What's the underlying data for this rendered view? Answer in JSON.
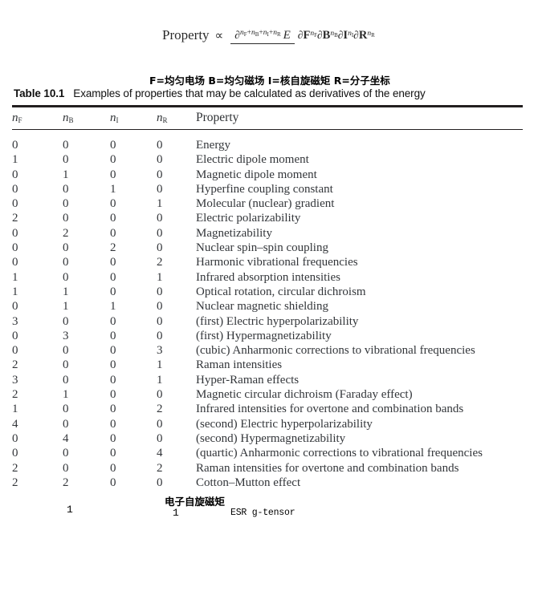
{
  "colors": {
    "background": "#ffffff",
    "table_text": "#33363a",
    "rule": "#231f20",
    "annotation_text": "#000000"
  },
  "formula": {
    "lhs": "Property",
    "propto": "∝",
    "partial": "∂",
    "energy": "E",
    "plus": "+",
    "sup_terms": [
      {
        "base": "n",
        "sub": "F"
      },
      {
        "base": "n",
        "sub": "B"
      },
      {
        "base": "n",
        "sub": "I"
      },
      {
        "base": "n",
        "sub": "R"
      }
    ],
    "den_terms": [
      {
        "var": "F",
        "base": "n",
        "sub": "F"
      },
      {
        "var": "B",
        "base": "n",
        "sub": "B"
      },
      {
        "var": "I",
        "base": "n",
        "sub": "I"
      },
      {
        "var": "R",
        "base": "n",
        "sub": "R"
      }
    ]
  },
  "legend": "F=均匀电场 B=均匀磁场 I=核自旋磁矩 R=分子坐标",
  "caption": {
    "label": "Table 10.1",
    "text": "Examples of properties that may be calculated as derivatives of the energy"
  },
  "table": {
    "header": {
      "n_cols": [
        {
          "base": "n",
          "sub": "F"
        },
        {
          "base": "n",
          "sub": "B"
        },
        {
          "base": "n",
          "sub": "I"
        },
        {
          "base": "n",
          "sub": "R"
        }
      ],
      "property": "Property"
    },
    "rows": [
      [
        "0",
        "0",
        "0",
        "0",
        "Energy"
      ],
      [
        "1",
        "0",
        "0",
        "0",
        "Electric dipole moment"
      ],
      [
        "0",
        "1",
        "0",
        "0",
        "Magnetic dipole moment"
      ],
      [
        "0",
        "0",
        "1",
        "0",
        "Hyperfine coupling constant"
      ],
      [
        "0",
        "0",
        "0",
        "1",
        "Molecular (nuclear) gradient"
      ],
      [
        "2",
        "0",
        "0",
        "0",
        "Electric polarizability"
      ],
      [
        "0",
        "2",
        "0",
        "0",
        "Magnetizability"
      ],
      [
        "0",
        "0",
        "2",
        "0",
        "Nuclear spin–spin coupling"
      ],
      [
        "0",
        "0",
        "0",
        "2",
        "Harmonic vibrational frequencies"
      ],
      [
        "1",
        "0",
        "0",
        "1",
        "Infrared absorption intensities"
      ],
      [
        "1",
        "1",
        "0",
        "0",
        "Optical rotation, circular dichroism"
      ],
      [
        "0",
        "1",
        "1",
        "0",
        "Nuclear magnetic shielding"
      ],
      [
        "3",
        "0",
        "0",
        "0",
        "(first) Electric hyperpolarizability"
      ],
      [
        "0",
        "3",
        "0",
        "0",
        "(first) Hypermagnetizability"
      ],
      [
        "0",
        "0",
        "0",
        "3",
        "(cubic) Anharmonic corrections to vibrational frequencies"
      ],
      [
        "2",
        "0",
        "0",
        "1",
        "Raman intensities"
      ],
      [
        "3",
        "0",
        "0",
        "1",
        "Hyper-Raman effects"
      ],
      [
        "2",
        "1",
        "0",
        "0",
        "Magnetic circular dichroism (Faraday effect)"
      ],
      [
        "1",
        "0",
        "0",
        "2",
        "Infrared intensities for overtone and combination bands"
      ],
      [
        "4",
        "0",
        "0",
        "0",
        "(second) Electric hyperpolarizability"
      ],
      [
        "0",
        "4",
        "0",
        "0",
        "(second) Hypermagnetizability"
      ],
      [
        "0",
        "0",
        "0",
        "4",
        "(quartic) Anharmonic corrections to vibrational frequencies"
      ],
      [
        "2",
        "0",
        "0",
        "2",
        "Raman intensities for overtone and combination bands"
      ],
      [
        "2",
        "2",
        "0",
        "0",
        "Cotton–Mutton effect"
      ]
    ]
  },
  "annotations": {
    "nb_value": "1",
    "spin_label": "电子自旋磁矩",
    "ns_value": "1",
    "property": "ESR g-tensor"
  }
}
